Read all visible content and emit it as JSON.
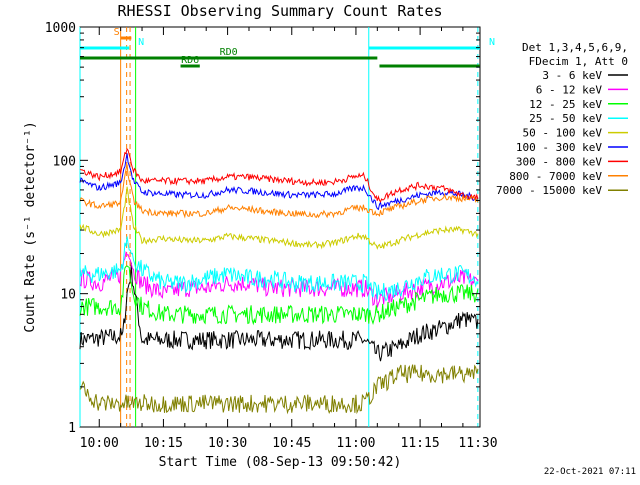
{
  "chart_data": {
    "type": "line",
    "title": "RHESSI Observing Summary Count Rates",
    "xlabel": "Start Time (08-Sep-13 09:50:42)",
    "ylabel": "Count Rate (s⁻¹ detector⁻¹)",
    "yscale": "log",
    "ylim": [
      1,
      1000
    ],
    "xlim_minutes": [
      -4.5,
      89.0
    ],
    "xticks": [
      {
        "label": "10:00",
        "minute": 0
      },
      {
        "label": "10:15",
        "minute": 15
      },
      {
        "label": "10:30",
        "minute": 30
      },
      {
        "label": "10:45",
        "minute": 45
      },
      {
        "label": "11:00",
        "minute": 60
      },
      {
        "label": "11:15",
        "minute": 75
      },
      {
        "label": "11:30",
        "minute": 90
      }
    ],
    "yticks": [
      {
        "label": "1",
        "value": 1
      },
      {
        "label": "10",
        "value": 10
      },
      {
        "label": "100",
        "value": 100
      },
      {
        "label": "1000",
        "value": 1000
      }
    ],
    "legend_header": [
      "Det 1,3,4,5,6,9,",
      "FDecim 1, Att 0"
    ],
    "legend_position": "right",
    "footer": "22-Oct-2021 07:11",
    "series": [
      {
        "name": "3 - 6 keV",
        "color": "#000000",
        "x": [
          -4.5,
          5.5,
          6.5,
          7.5,
          10,
          15,
          20,
          25,
          30,
          35,
          40,
          45,
          50,
          55,
          60,
          62,
          65,
          70,
          75,
          80,
          85,
          88.5
        ],
        "y": [
          4.5,
          4.8,
          10,
          15,
          4.5,
          4.5,
          4.5,
          4.5,
          4.5,
          4.5,
          4.5,
          4.5,
          4.5,
          4.5,
          4.5,
          4.5,
          3.5,
          4,
          5,
          5.5,
          6.5,
          6
        ]
      },
      {
        "name": "6 - 12 keV",
        "color": "#ff00ff",
        "x": [
          -4.5,
          0,
          5,
          6.5,
          8,
          10,
          15,
          20,
          25,
          30,
          35,
          40,
          45,
          50,
          55,
          60,
          62,
          65,
          70,
          75,
          80,
          85,
          88.5
        ],
        "y": [
          13,
          12,
          14,
          22,
          15,
          12,
          10,
          11,
          11,
          12,
          12,
          11,
          11,
          11,
          11,
          11,
          11,
          9,
          10,
          11,
          12,
          13,
          12
        ]
      },
      {
        "name": "12 - 25 keV",
        "color": "#00ff00",
        "x": [
          -4.5,
          5,
          6.5,
          8,
          10,
          15,
          20,
          25,
          30,
          35,
          40,
          45,
          50,
          55,
          60,
          62,
          65,
          70,
          75,
          80,
          85,
          88.5
        ],
        "y": [
          8,
          8,
          18,
          10,
          8,
          7,
          7,
          7,
          7,
          7,
          7,
          7,
          7,
          7,
          7,
          7,
          7,
          8,
          9,
          10,
          10,
          10
        ]
      },
      {
        "name": "25 - 50 keV",
        "color": "#00ffff",
        "x": [
          -4.5,
          0,
          5,
          6.5,
          8,
          10,
          15,
          20,
          25,
          30,
          35,
          40,
          45,
          50,
          55,
          60,
          62,
          65,
          70,
          75,
          80,
          85,
          88.5
        ],
        "y": [
          14,
          14,
          15,
          25,
          18,
          15,
          12,
          12,
          13,
          14,
          13,
          13,
          12,
          12,
          12,
          12,
          12,
          10,
          11,
          13,
          14,
          14,
          13
        ]
      },
      {
        "name": "50 - 100 keV",
        "color": "#cccc00",
        "x": [
          -4.5,
          0,
          5,
          6.5,
          8,
          10,
          15,
          20,
          22,
          25,
          30,
          35,
          40,
          45,
          50,
          55,
          60,
          62,
          65,
          70,
          75,
          80,
          85,
          88.5
        ],
        "y": [
          32,
          28,
          30,
          60,
          32,
          25,
          26,
          25,
          25,
          25,
          27,
          26,
          25,
          24,
          23,
          24,
          27,
          27,
          22,
          25,
          28,
          30,
          30,
          28
        ]
      },
      {
        "name": "100 - 300 keV",
        "color": "#0000ff",
        "x": [
          -4.5,
          0,
          5,
          6.5,
          8,
          10,
          15,
          20,
          22,
          25,
          30,
          35,
          40,
          45,
          50,
          55,
          60,
          62,
          65,
          70,
          75,
          80,
          85,
          88.5
        ],
        "y": [
          70,
          62,
          68,
          110,
          70,
          58,
          56,
          55,
          55,
          55,
          60,
          59,
          57,
          55,
          55,
          56,
          62,
          62,
          45,
          50,
          55,
          58,
          55,
          52
        ]
      },
      {
        "name": "300 - 800 keV",
        "color": "#ff0000",
        "x": [
          -4.5,
          0,
          5,
          6.5,
          8,
          10,
          15,
          20,
          22,
          25,
          30,
          35,
          40,
          45,
          50,
          55,
          60,
          62,
          65,
          70,
          75,
          80,
          85,
          88.5
        ],
        "y": [
          85,
          75,
          82,
          125,
          85,
          70,
          70,
          70,
          70,
          70,
          75,
          75,
          72,
          70,
          68,
          69,
          76,
          76,
          50,
          60,
          65,
          62,
          55,
          52
        ]
      },
      {
        "name": "800 - 7000 keV",
        "color": "#ff8000",
        "x": [
          -4.5,
          0,
          5,
          6.5,
          8,
          10,
          15,
          20,
          22,
          25,
          30,
          35,
          40,
          45,
          50,
          55,
          60,
          62,
          65,
          70,
          75,
          80,
          85,
          88.5
        ],
        "y": [
          50,
          45,
          48,
          90,
          50,
          42,
          40,
          40,
          40,
          40,
          44,
          43,
          41,
          40,
          39,
          40,
          44,
          44,
          40,
          45,
          50,
          53,
          52,
          50
        ]
      },
      {
        "name": "7000 - 15000 keV",
        "color": "#808000",
        "x": [
          -4.5,
          0,
          5,
          10,
          15,
          20,
          25,
          30,
          35,
          40,
          45,
          50,
          55,
          60,
          62,
          65,
          70,
          75,
          80,
          85,
          88.5
        ],
        "y": [
          2,
          1.5,
          1.5,
          1.5,
          1.5,
          1.5,
          1.5,
          1.5,
          1.5,
          1.5,
          1.5,
          1.5,
          1.5,
          1.5,
          1.5,
          2,
          2.5,
          2.5,
          2.5,
          2.5,
          2.5
        ]
      }
    ],
    "flags": [
      {
        "label": "S",
        "color": "#ff8000",
        "x_start": 5.0,
        "x_end": 7.5,
        "level": 1
      },
      {
        "label": "N",
        "color": "#00ffff",
        "x_start": -4.5,
        "x_end": 7.0,
        "level": 2
      },
      {
        "label": "N",
        "color": "#00ffff",
        "x_start": 63.0,
        "x_end": 89.0,
        "level": 2
      },
      {
        "label": "RD0",
        "color": "#008000",
        "x_start": -4.5,
        "x_end": 65.0,
        "level": 3
      },
      {
        "label": "RD6",
        "color": "#008000",
        "x_start": 19.0,
        "x_end": 23.5,
        "level": 4
      },
      {
        "label": "",
        "color": "#008000",
        "x_start": 65.5,
        "x_end": 89.0,
        "level": 4
      }
    ],
    "vlines": [
      {
        "minute": -4.5,
        "color": "#00ffff",
        "dashed": false
      },
      {
        "minute": 5.0,
        "color": "#ff8000",
        "dashed": false
      },
      {
        "minute": 6.4,
        "color": "#ff8000",
        "dashed": true
      },
      {
        "minute": 7.2,
        "color": "#ff8000",
        "dashed": true
      },
      {
        "minute": 8.5,
        "color": "#00ff00",
        "dashed": false
      },
      {
        "minute": 63.0,
        "color": "#00ffff",
        "dashed": false
      },
      {
        "minute": 88.5,
        "color": "#00ffff",
        "dashed": true
      }
    ]
  }
}
